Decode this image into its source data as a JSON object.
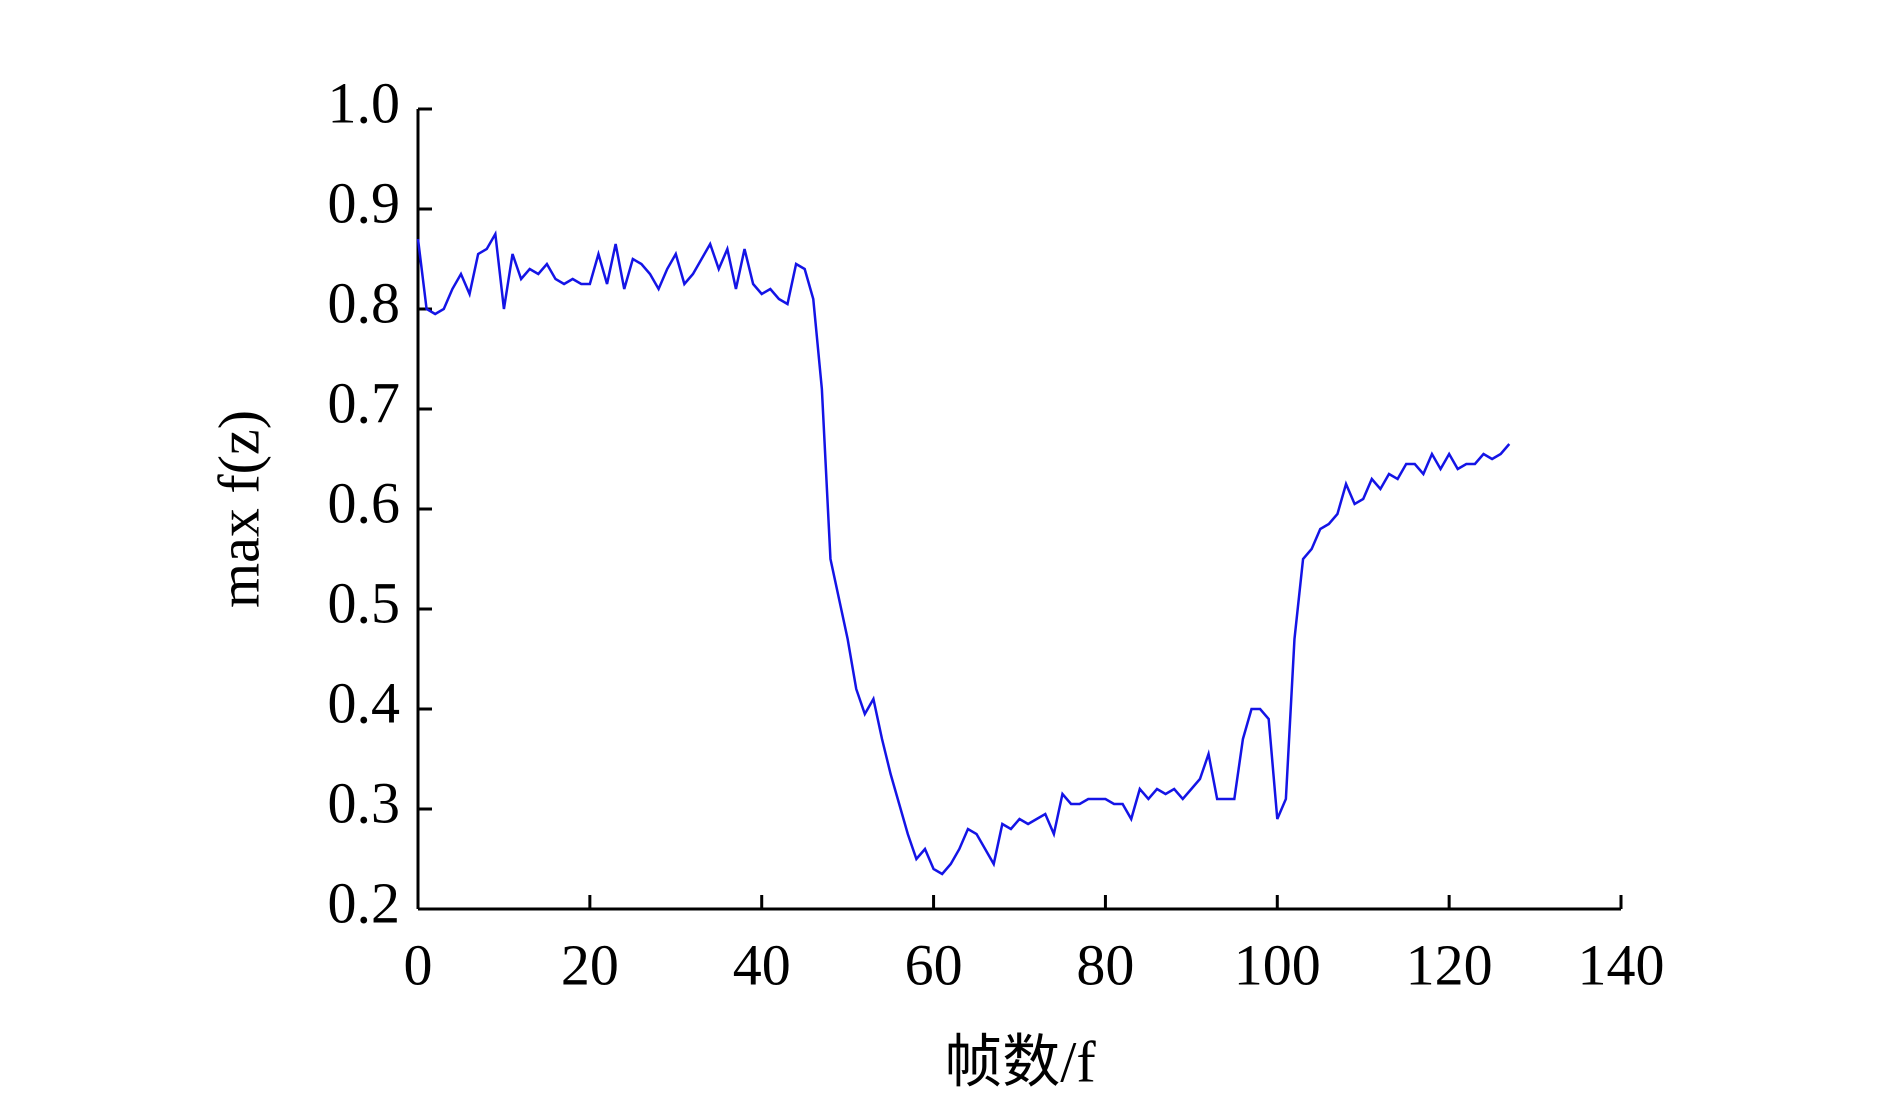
{
  "chart_data": {
    "type": "line",
    "xlabel": "帧数/f",
    "ylabel": "max f(z)",
    "x": [
      0,
      1,
      2,
      3,
      4,
      5,
      6,
      7,
      8,
      9,
      10,
      11,
      12,
      13,
      14,
      15,
      16,
      17,
      18,
      19,
      20,
      21,
      22,
      23,
      24,
      25,
      26,
      27,
      28,
      29,
      30,
      31,
      32,
      33,
      34,
      35,
      36,
      37,
      38,
      39,
      40,
      41,
      42,
      43,
      44,
      45,
      46,
      47,
      48,
      49,
      50,
      51,
      52,
      53,
      54,
      55,
      56,
      57,
      58,
      59,
      60,
      61,
      62,
      63,
      64,
      65,
      66,
      67,
      68,
      69,
      70,
      71,
      72,
      73,
      74,
      75,
      76,
      77,
      78,
      79,
      80,
      81,
      82,
      83,
      84,
      85,
      86,
      87,
      88,
      89,
      90,
      91,
      92,
      93,
      94,
      95,
      96,
      97,
      98,
      99,
      100,
      101,
      102,
      103,
      104,
      105,
      106,
      107,
      108,
      109,
      110,
      111,
      112,
      113,
      114,
      115,
      116,
      117,
      118,
      119,
      120,
      121,
      122,
      123,
      124,
      125,
      126,
      127
    ],
    "series": [
      {
        "color": "#1414e6",
        "values": [
          0.87,
          0.8,
          0.795,
          0.8,
          0.82,
          0.835,
          0.815,
          0.855,
          0.86,
          0.875,
          0.8,
          0.855,
          0.83,
          0.84,
          0.835,
          0.845,
          0.83,
          0.825,
          0.83,
          0.825,
          0.825,
          0.855,
          0.825,
          0.865,
          0.82,
          0.85,
          0.845,
          0.835,
          0.82,
          0.84,
          0.855,
          0.825,
          0.835,
          0.85,
          0.865,
          0.84,
          0.86,
          0.82,
          0.86,
          0.825,
          0.815,
          0.82,
          0.81,
          0.805,
          0.845,
          0.84,
          0.81,
          0.72,
          0.55,
          0.51,
          0.47,
          0.42,
          0.395,
          0.41,
          0.37,
          0.335,
          0.305,
          0.275,
          0.25,
          0.26,
          0.24,
          0.235,
          0.245,
          0.26,
          0.28,
          0.275,
          0.26,
          0.245,
          0.285,
          0.28,
          0.29,
          0.285,
          0.29,
          0.295,
          0.275,
          0.315,
          0.305,
          0.305,
          0.31,
          0.31,
          0.31,
          0.305,
          0.305,
          0.29,
          0.32,
          0.31,
          0.32,
          0.315,
          0.32,
          0.31,
          0.32,
          0.33,
          0.355,
          0.31,
          0.31,
          0.31,
          0.37,
          0.4,
          0.4,
          0.39,
          0.29,
          0.31,
          0.47,
          0.55,
          0.56,
          0.58,
          0.585,
          0.595,
          0.625,
          0.605,
          0.61,
          0.63,
          0.62,
          0.635,
          0.63,
          0.645,
          0.645,
          0.635,
          0.655,
          0.64,
          0.655,
          0.64,
          0.645,
          0.645,
          0.655,
          0.65,
          0.655,
          0.665
        ]
      }
    ],
    "xlim": [
      0,
      140
    ],
    "xticks": [
      0,
      20,
      40,
      60,
      80,
      100,
      120,
      140
    ],
    "ylim": [
      0.2,
      1.0
    ],
    "yticks": [
      0.2,
      0.3,
      0.4,
      0.5,
      0.6,
      0.7,
      0.8,
      0.9,
      {
        "value": 1.0,
        "label": "1.0"
      }
    ]
  }
}
